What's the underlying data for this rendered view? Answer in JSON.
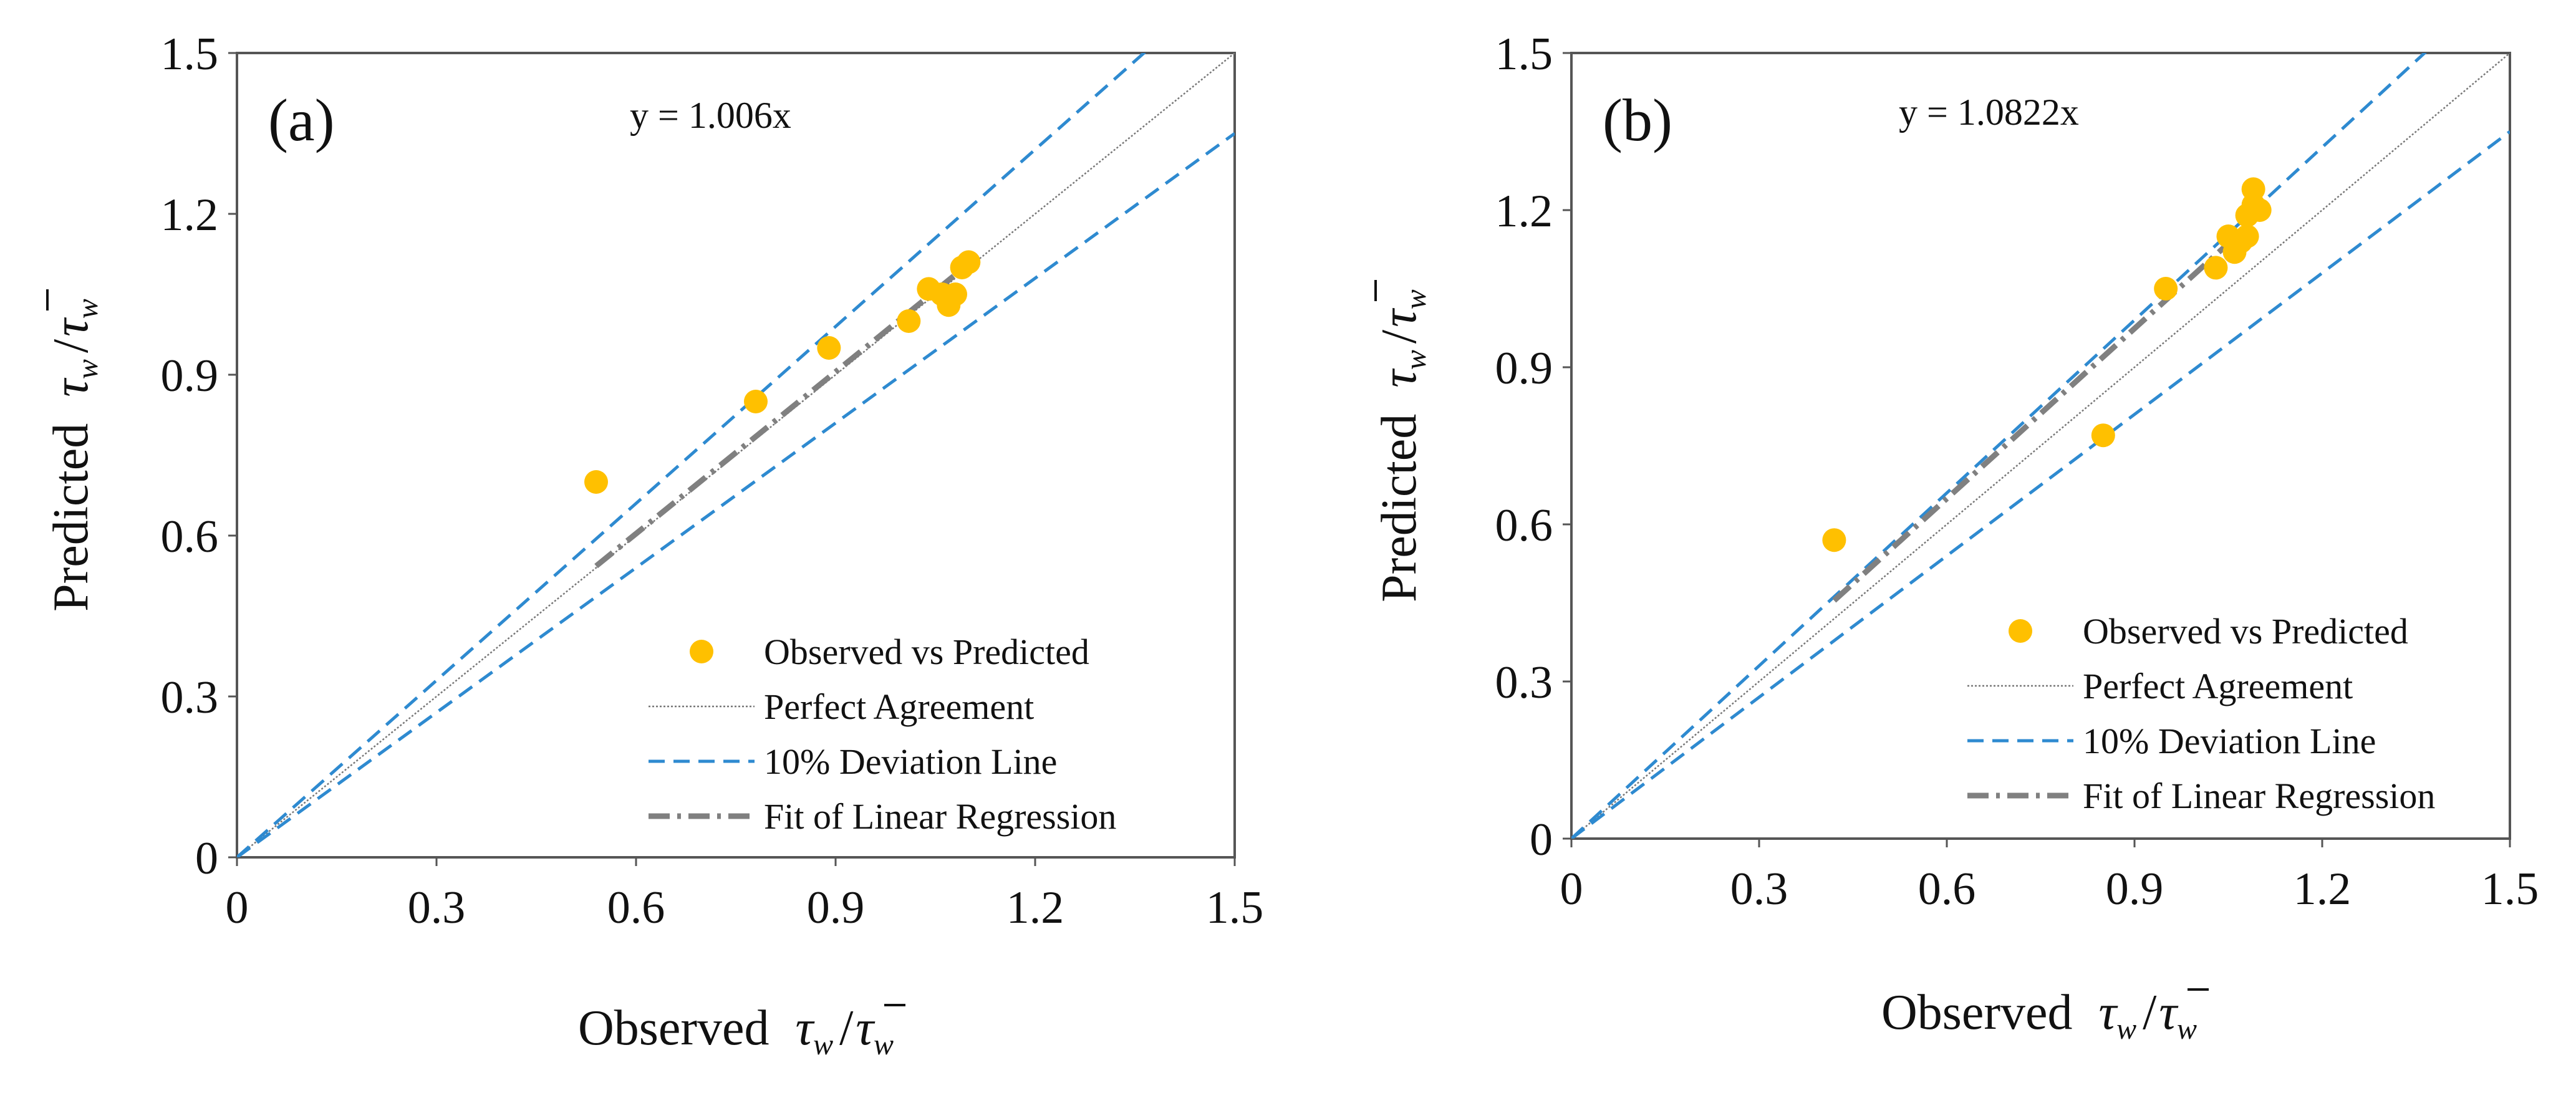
{
  "figure": {
    "panels": [
      "(a)",
      "(b)"
    ]
  },
  "chart_data": [
    {
      "type": "scatter",
      "panel_label": "(a)",
      "annotation": "y = 1.006x",
      "xlabel": "Observed",
      "ylabel": "Predicted",
      "axis_symbol": "τ",
      "axis_symbol_sub": "w",
      "xlim": [
        0,
        1.5
      ],
      "ylim": [
        0,
        1.5
      ],
      "xticks": [
        "0",
        "0.3",
        "0.6",
        "0.9",
        "1.2",
        "1.5"
      ],
      "yticks": [
        "0",
        "0.3",
        "0.6",
        "0.9",
        "1.2",
        "1.5"
      ],
      "grid": false,
      "legend_position": "bottom-right",
      "legend": [
        "Observed vs Predicted",
        "Perfect Agreement",
        "10% Deviation Line",
        "Fit of Linear Regression"
      ],
      "series": [
        {
          "name": "Observed vs Predicted",
          "points": [
            [
              0.54,
              0.7
            ],
            [
              0.78,
              0.85
            ],
            [
              0.89,
              0.95
            ],
            [
              1.01,
              1.0
            ],
            [
              1.04,
              1.06
            ],
            [
              1.06,
              1.05
            ],
            [
              1.07,
              1.03
            ],
            [
              1.08,
              1.05
            ],
            [
              1.09,
              1.1
            ],
            [
              1.1,
              1.11
            ]
          ]
        },
        {
          "name": "Perfect Agreement",
          "slope": 1.0,
          "x_range": [
            0,
            1.5
          ]
        },
        {
          "name": "10% Deviation Line",
          "slopes": [
            1.1,
            0.9
          ],
          "x_range": [
            0,
            1.5
          ]
        },
        {
          "name": "Fit of Linear Regression",
          "slope": 1.006,
          "x_range": [
            0.54,
            1.1
          ]
        }
      ]
    },
    {
      "type": "scatter",
      "panel_label": "(b)",
      "annotation": "y = 1.0822x",
      "xlabel": "Observed",
      "ylabel": "Predicted",
      "axis_symbol": "τ",
      "axis_symbol_sub": "w",
      "xlim": [
        0,
        1.5
      ],
      "ylim": [
        0,
        1.5
      ],
      "xticks": [
        "0",
        "0.3",
        "0.6",
        "0.9",
        "1.2",
        "1.5"
      ],
      "yticks": [
        "0",
        "0.3",
        "0.6",
        "0.9",
        "1.2",
        "1.5"
      ],
      "grid": false,
      "legend_position": "bottom-right",
      "legend": [
        "Observed vs Predicted",
        "Perfect Agreement",
        "10% Deviation Line",
        "Fit of Linear Regression"
      ],
      "series": [
        {
          "name": "Observed vs Predicted",
          "points": [
            [
              0.42,
              0.57
            ],
            [
              0.85,
              0.77
            ],
            [
              0.95,
              1.05
            ],
            [
              1.03,
              1.09
            ],
            [
              1.05,
              1.15
            ],
            [
              1.06,
              1.12
            ],
            [
              1.07,
              1.14
            ],
            [
              1.08,
              1.15
            ],
            [
              1.08,
              1.19
            ],
            [
              1.09,
              1.21
            ],
            [
              1.09,
              1.24
            ],
            [
              1.1,
              1.2
            ]
          ]
        },
        {
          "name": "Perfect Agreement",
          "slope": 1.0,
          "x_range": [
            0,
            1.5
          ]
        },
        {
          "name": "10% Deviation Line",
          "slopes": [
            1.1,
            0.9
          ],
          "x_range": [
            0,
            1.5
          ]
        },
        {
          "name": "Fit of Linear Regression",
          "slope": 1.0822,
          "x_range": [
            0.42,
            1.1
          ]
        }
      ]
    }
  ],
  "colors": {
    "points": "#FFC000",
    "perfect": "#777777",
    "deviation": "#2E8AD0",
    "regression": "#808080",
    "frame": "#555555"
  }
}
